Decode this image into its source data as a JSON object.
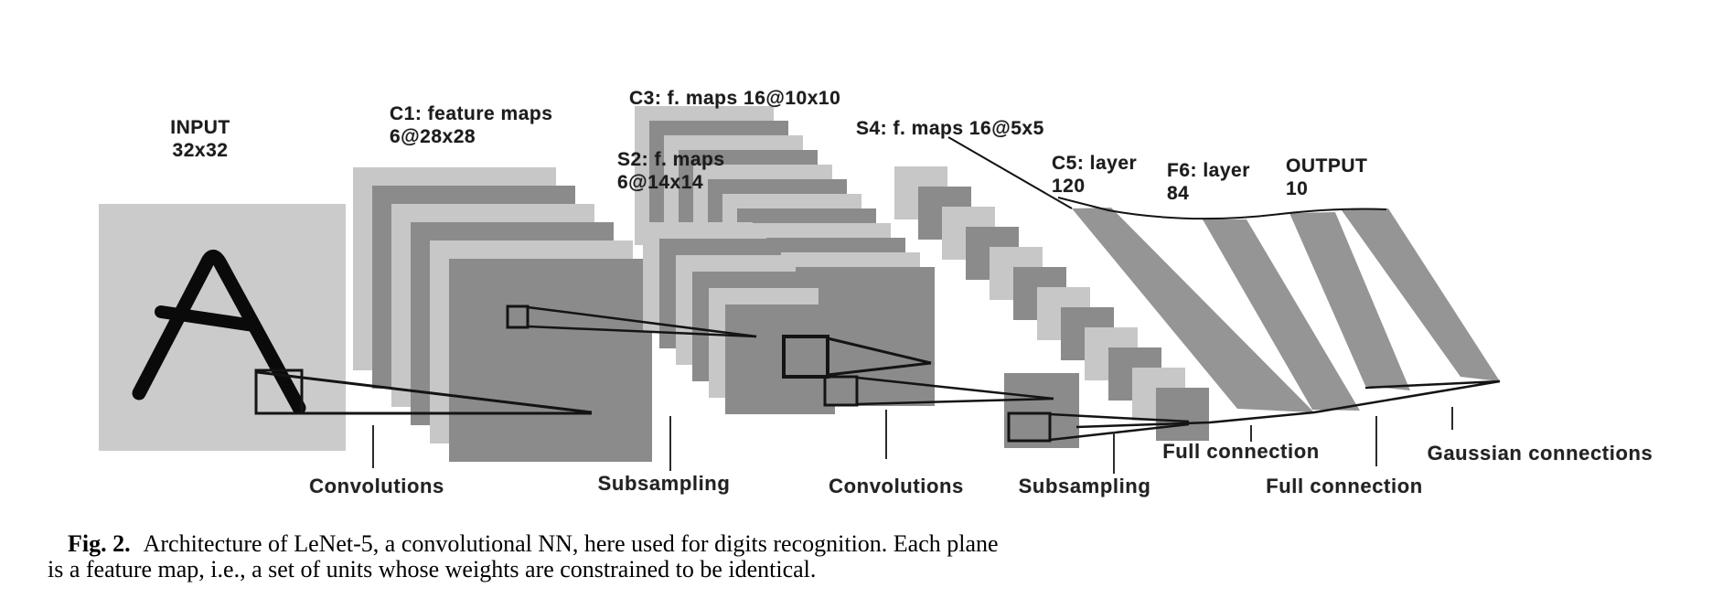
{
  "figure": {
    "type": "neural-network-architecture-diagram",
    "labels": {
      "input": "INPUT\n32x32",
      "c1": "C1: feature maps\n6@28x28",
      "s2": "S2: f. maps\n6@14x14",
      "c3": "C3: f. maps 16@10x10",
      "s4": "S4: f. maps 16@5x5",
      "c5": "C5: layer\n120",
      "f6": "F6: layer\n84",
      "output": "OUTPUT\n10"
    },
    "operations": {
      "conv1": "Convolutions",
      "sub1": "Subsampling",
      "conv2": "Convolutions",
      "sub2": "Subsampling",
      "full1": "Full connection",
      "full2": "Full connection",
      "gauss": "Gaussian connections"
    },
    "caption": {
      "fig_label": "Fig. 2.",
      "line1_rest": "Architecture of LeNet-5, a convolutional NN, here used for digits recognition. Each plane",
      "line2": "is a feature map, i.e., a set of units whose weights are constrained to be identical."
    },
    "colors": {
      "plane_light": "#c7c7c7",
      "plane_dark": "#8b8b8b",
      "input_square": "#cbcbcb",
      "stripe": "#959595",
      "ink": "#141414"
    }
  }
}
